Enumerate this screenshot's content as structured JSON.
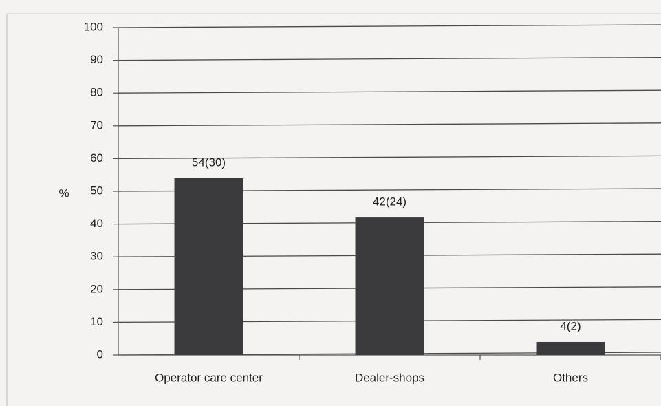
{
  "chart_data": {
    "type": "bar",
    "categories": [
      "Operator care center",
      "Dealer-shops",
      "Others"
    ],
    "values": [
      54,
      42,
      4
    ],
    "value_labels": [
      "54(30)",
      "42(24)",
      "4(2)"
    ],
    "color": "#3b3b3d",
    "y_label": "%",
    "ylim": [
      0,
      100
    ],
    "yticks": [
      0,
      10,
      20,
      30,
      40,
      50,
      60,
      70,
      80,
      90,
      100
    ],
    "grid": true
  }
}
